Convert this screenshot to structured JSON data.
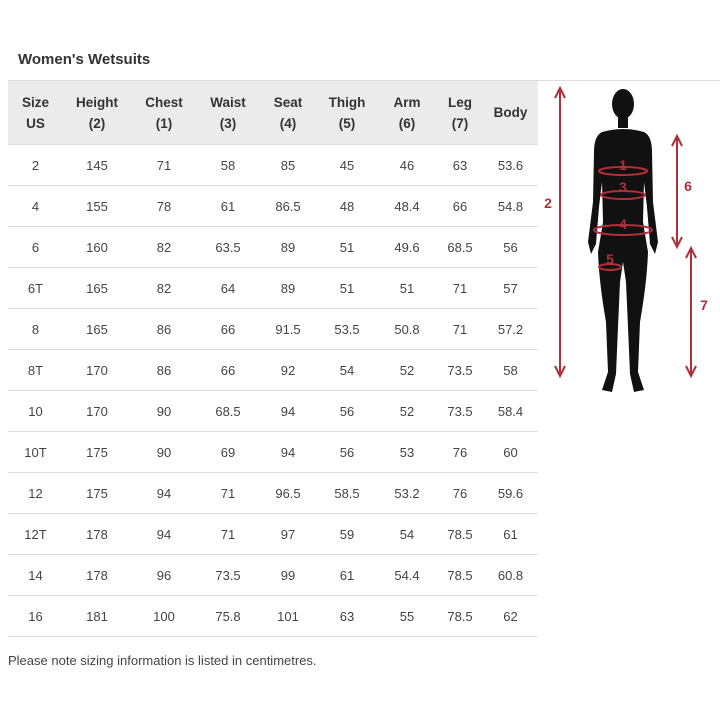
{
  "title": "Women's Wetsuits",
  "columns": [
    {
      "line1": "Size",
      "line2": "US"
    },
    {
      "line1": "Height",
      "line2": "(2)"
    },
    {
      "line1": "Chest",
      "line2": "(1)"
    },
    {
      "line1": "Waist",
      "line2": "(3)"
    },
    {
      "line1": "Seat",
      "line2": "(4)"
    },
    {
      "line1": "Thigh",
      "line2": "(5)"
    },
    {
      "line1": "Arm",
      "line2": "(6)"
    },
    {
      "line1": "Leg",
      "line2": "(7)"
    },
    {
      "line1": "Body",
      "line2": ""
    }
  ],
  "rows": [
    [
      "2",
      "145",
      "71",
      "58",
      "85",
      "45",
      "46",
      "63",
      "53.6"
    ],
    [
      "4",
      "155",
      "78",
      "61",
      "86.5",
      "48",
      "48.4",
      "66",
      "54.8"
    ],
    [
      "6",
      "160",
      "82",
      "63.5",
      "89",
      "51",
      "49.6",
      "68.5",
      "56"
    ],
    [
      "6T",
      "165",
      "82",
      "64",
      "89",
      "51",
      "51",
      "71",
      "57"
    ],
    [
      "8",
      "165",
      "86",
      "66",
      "91.5",
      "53.5",
      "50.8",
      "71",
      "57.2"
    ],
    [
      "8T",
      "170",
      "86",
      "66",
      "92",
      "54",
      "52",
      "73.5",
      "58"
    ],
    [
      "10",
      "170",
      "90",
      "68.5",
      "94",
      "56",
      "52",
      "73.5",
      "58.4"
    ],
    [
      "10T",
      "175",
      "90",
      "69",
      "94",
      "56",
      "53",
      "76",
      "60"
    ],
    [
      "12",
      "175",
      "94",
      "71",
      "96.5",
      "58.5",
      "53.2",
      "76",
      "59.6"
    ],
    [
      "12T",
      "178",
      "94",
      "71",
      "97",
      "59",
      "54",
      "78.5",
      "61"
    ],
    [
      "14",
      "178",
      "96",
      "73.5",
      "99",
      "61",
      "54.4",
      "78.5",
      "60.8"
    ],
    [
      "16",
      "181",
      "100",
      "75.8",
      "101",
      "63",
      "55",
      "78.5",
      "62"
    ]
  ],
  "note": "Please note sizing information is listed in centimetres.",
  "figure": {
    "labels": {
      "chest": "1",
      "height": "2",
      "waist": "3",
      "seat": "4",
      "thigh": "5",
      "arm": "6",
      "leg": "7"
    },
    "accent_color": "#b0303a",
    "silhouette_color": "#111111"
  }
}
